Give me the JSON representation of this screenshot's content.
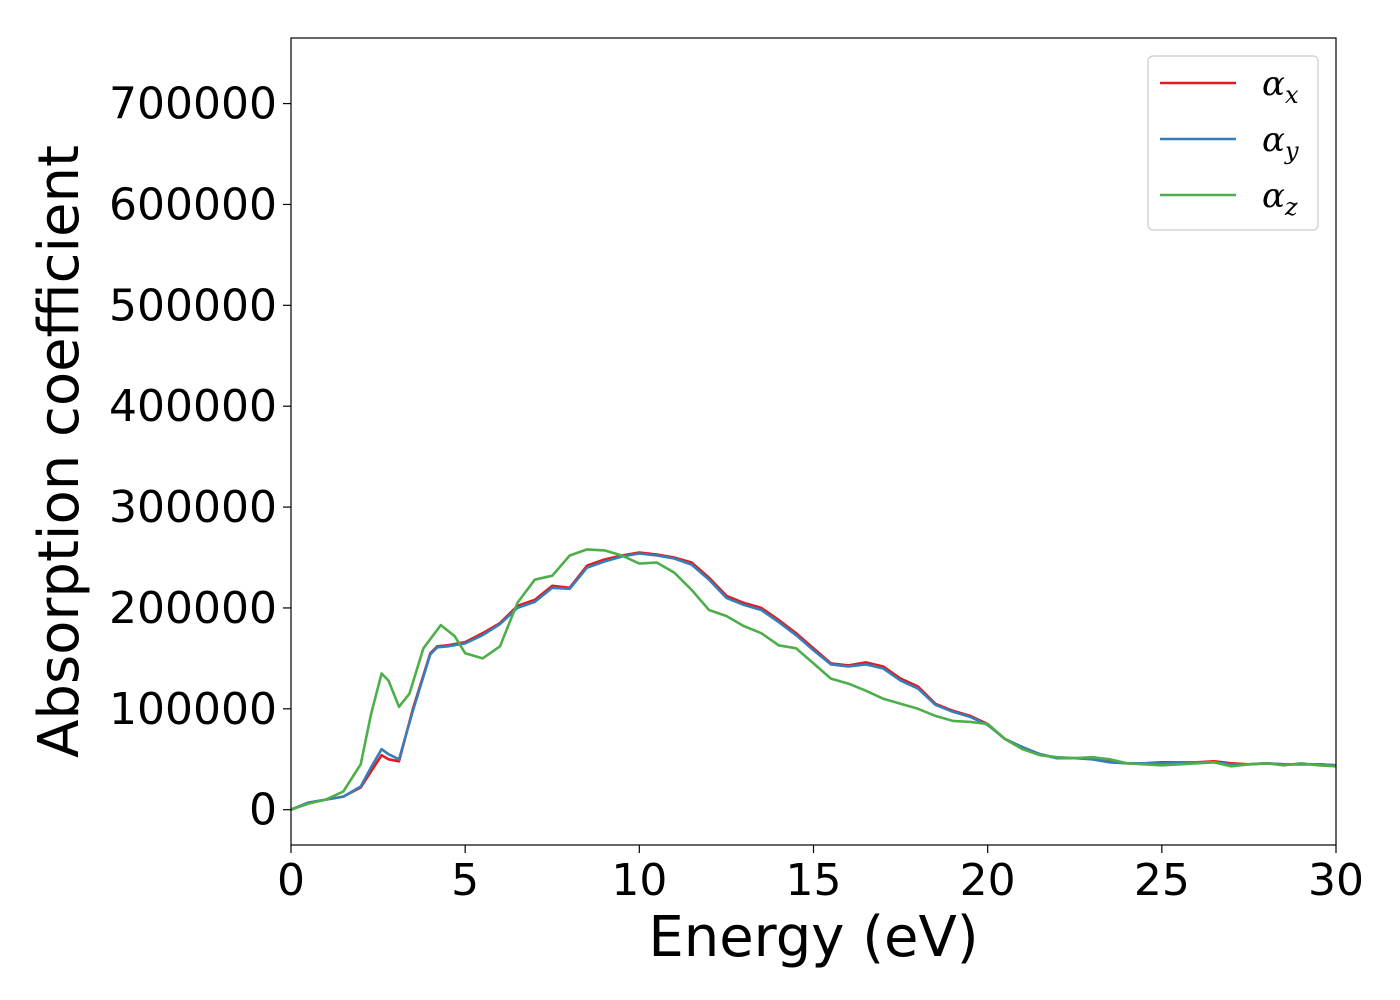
{
  "chart_data": {
    "type": "line",
    "xlabel": "Energy (eV)",
    "ylabel": "Absorption coefficient",
    "xlim": [
      0,
      30
    ],
    "ylim": [
      -35000,
      765000
    ],
    "xticks": [
      0,
      5,
      10,
      15,
      20,
      25,
      30
    ],
    "yticks": [
      0,
      100000,
      200000,
      300000,
      400000,
      500000,
      600000,
      700000
    ],
    "grid": false,
    "legend_position": "top-right",
    "series": [
      {
        "name": "α_x",
        "label_base": "α",
        "label_sub": "x",
        "color": "#e41a1c",
        "x": [
          0,
          0.5,
          1,
          1.5,
          2,
          2.3,
          2.6,
          2.8,
          3.1,
          3.5,
          4,
          4.2,
          4.5,
          5,
          5.5,
          6,
          6.5,
          7,
          7.5,
          8,
          8.5,
          9,
          9.5,
          10,
          10.5,
          11,
          11.5,
          12,
          12.5,
          13,
          13.5,
          14,
          14.5,
          15,
          15.5,
          16,
          16.5,
          17,
          17.5,
          18,
          18.5,
          19,
          19.5,
          20,
          20.5,
          21,
          21.5,
          22,
          22.5,
          23,
          23.5,
          24,
          24.5,
          25,
          25.5,
          26,
          26.5,
          27,
          27.5,
          28,
          28.5,
          29,
          29.5,
          30
        ],
        "y": [
          0,
          7000,
          10000,
          13000,
          22000,
          38000,
          54000,
          50000,
          48000,
          100000,
          155000,
          162000,
          163000,
          166000,
          175000,
          185000,
          202000,
          208000,
          222000,
          220000,
          242000,
          248000,
          252000,
          255000,
          253000,
          250000,
          245000,
          230000,
          212000,
          205000,
          200000,
          188000,
          175000,
          160000,
          145000,
          143000,
          146000,
          142000,
          130000,
          122000,
          105000,
          98000,
          93000,
          85000,
          70000,
          62000,
          55000,
          51000,
          51000,
          51000,
          48000,
          46000,
          46000,
          47000,
          47000,
          47000,
          48000,
          46000,
          45000,
          46000,
          45000,
          45000,
          45000,
          44000
        ]
      },
      {
        "name": "α_y",
        "label_base": "α",
        "label_sub": "y",
        "color": "#377eb8",
        "x": [
          0,
          0.5,
          1,
          1.5,
          2,
          2.3,
          2.6,
          2.8,
          3.1,
          3.5,
          4,
          4.2,
          4.5,
          5,
          5.5,
          6,
          6.5,
          7,
          7.5,
          8,
          8.5,
          9,
          9.5,
          10,
          10.5,
          11,
          11.5,
          12,
          12.5,
          13,
          13.5,
          14,
          14.5,
          15,
          15.5,
          16,
          16.5,
          17,
          17.5,
          18,
          18.5,
          19,
          19.5,
          20,
          20.5,
          21,
          21.5,
          22,
          22.5,
          23,
          23.5,
          24,
          24.5,
          25,
          25.5,
          26,
          26.5,
          27,
          27.5,
          28,
          28.5,
          29,
          29.5,
          30
        ],
        "y": [
          0,
          7000,
          10000,
          13000,
          23000,
          42000,
          60000,
          55000,
          50000,
          98000,
          154000,
          161000,
          162000,
          165000,
          173000,
          184000,
          200000,
          206000,
          220000,
          219000,
          240000,
          246000,
          251000,
          254000,
          252000,
          249000,
          243000,
          228000,
          210000,
          203000,
          198000,
          186000,
          173000,
          158000,
          144000,
          142000,
          144000,
          140000,
          128000,
          120000,
          104000,
          97000,
          92000,
          84000,
          70000,
          62000,
          55000,
          51000,
          51000,
          50000,
          47000,
          46000,
          46000,
          46000,
          47000,
          47000,
          47000,
          45000,
          45000,
          46000,
          45000,
          45000,
          45000,
          44000
        ]
      },
      {
        "name": "α_z",
        "label_base": "α",
        "label_sub": "z",
        "color": "#4daf4a",
        "x": [
          0,
          0.5,
          1,
          1.5,
          2,
          2.3,
          2.6,
          2.8,
          3.1,
          3.4,
          3.8,
          4.3,
          4.7,
          5,
          5.5,
          6,
          6.5,
          7,
          7.5,
          8,
          8.5,
          9,
          9.5,
          10,
          10.5,
          11,
          11.5,
          12,
          12.5,
          13,
          13.5,
          14,
          14.5,
          15,
          15.5,
          16,
          16.5,
          17,
          17.5,
          18,
          18.5,
          19,
          19.5,
          20,
          20.5,
          21,
          21.5,
          22,
          22.5,
          23,
          23.5,
          24,
          24.5,
          25,
          25.5,
          26,
          26.5,
          27,
          27.5,
          28,
          28.5,
          29,
          29.5,
          30
        ],
        "y": [
          0,
          6000,
          10000,
          18000,
          45000,
          95000,
          135000,
          128000,
          102000,
          115000,
          160000,
          183000,
          172000,
          155000,
          150000,
          162000,
          205000,
          228000,
          232000,
          252000,
          258000,
          257000,
          252000,
          244000,
          245000,
          235000,
          218000,
          198000,
          192000,
          182000,
          175000,
          163000,
          160000,
          145000,
          130000,
          125000,
          118000,
          110000,
          105000,
          100000,
          93000,
          88000,
          87000,
          85000,
          70000,
          60000,
          54000,
          52000,
          51000,
          52000,
          50000,
          46000,
          45000,
          44000,
          45000,
          46000,
          47000,
          43000,
          45000,
          46000,
          44000,
          46000,
          44000,
          43000
        ]
      }
    ]
  }
}
